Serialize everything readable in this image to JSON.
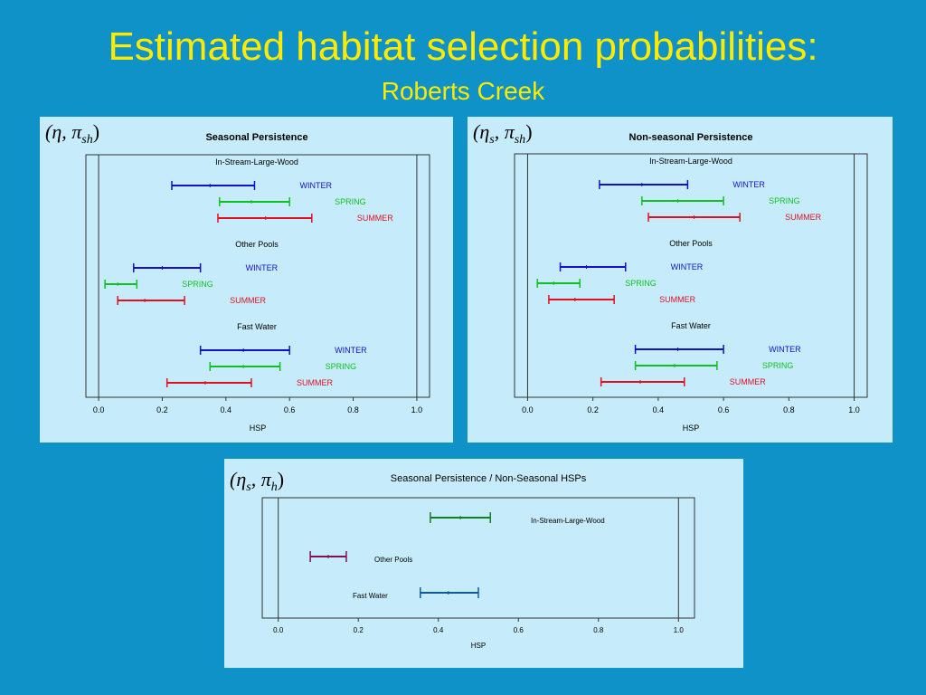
{
  "title": "Estimated habitat selection probabilities:",
  "subtitle": "Roberts Creek",
  "colors": {
    "background": "#0e92c8",
    "title": "#ffea00",
    "panel": "#c6ecfb",
    "winter": "#1010d0",
    "spring": "#10c020",
    "summer": "#e01020",
    "large_wood": "#108020",
    "other_pools": "#801050",
    "fast_water": "#105a98"
  },
  "chart_data": [
    {
      "type": "interval",
      "panel_label": "(η, π",
      "panel_label_sub": "sh",
      "title": "Seasonal Persistence",
      "xlabel": "HSP",
      "xlim": [
        -0.04,
        1.04
      ],
      "xticks": [
        "0.0",
        "0.2",
        "0.4",
        "0.6",
        "0.8",
        "1.0"
      ],
      "reference_lines": [
        0,
        1
      ],
      "groups": [
        {
          "name": "In-Stream-Large-Wood",
          "series": [
            {
              "name": "WINTER",
              "color": "#1010d0",
              "low": 0.23,
              "est": 0.35,
              "high": 0.49
            },
            {
              "name": "SPRING",
              "color": "#10c020",
              "low": 0.38,
              "est": 0.48,
              "high": 0.6
            },
            {
              "name": "SUMMER",
              "color": "#e01020",
              "low": 0.375,
              "est": 0.525,
              "high": 0.67
            }
          ]
        },
        {
          "name": "Other Pools",
          "series": [
            {
              "name": "WINTER",
              "color": "#1010d0",
              "low": 0.11,
              "est": 0.2,
              "high": 0.32
            },
            {
              "name": "SPRING",
              "color": "#10c020",
              "low": 0.02,
              "est": 0.06,
              "high": 0.12
            },
            {
              "name": "SUMMER",
              "color": "#e01020",
              "low": 0.06,
              "est": 0.145,
              "high": 0.27
            }
          ]
        },
        {
          "name": "Fast Water",
          "series": [
            {
              "name": "WINTER",
              "color": "#1010d0",
              "low": 0.32,
              "est": 0.455,
              "high": 0.6
            },
            {
              "name": "SPRING",
              "color": "#10c020",
              "low": 0.35,
              "est": 0.455,
              "high": 0.57
            },
            {
              "name": "SUMMER",
              "color": "#e01020",
              "low": 0.215,
              "est": 0.335,
              "high": 0.48
            }
          ]
        }
      ]
    },
    {
      "type": "interval",
      "panel_label": "(η",
      "panel_label_sub1": "s",
      "panel_label_mid": ", π",
      "panel_label_sub": "sh",
      "title": "Non-seasonal Persistence",
      "xlabel": "HSP",
      "xlim": [
        -0.04,
        1.04
      ],
      "xticks": [
        "0.0",
        "0.2",
        "0.4",
        "0.6",
        "0.8",
        "1.0"
      ],
      "reference_lines": [
        0,
        1
      ],
      "groups": [
        {
          "name": "In-Stream-Large-Wood",
          "series": [
            {
              "name": "WINTER",
              "color": "#1010d0",
              "low": 0.22,
              "est": 0.35,
              "high": 0.49
            },
            {
              "name": "SPRING",
              "color": "#10c020",
              "low": 0.35,
              "est": 0.46,
              "high": 0.6
            },
            {
              "name": "SUMMER",
              "color": "#e01020",
              "low": 0.37,
              "est": 0.51,
              "high": 0.65
            }
          ]
        },
        {
          "name": "Other Pools",
          "series": [
            {
              "name": "WINTER",
              "color": "#1010d0",
              "low": 0.1,
              "est": 0.18,
              "high": 0.3
            },
            {
              "name": "SPRING",
              "color": "#10c020",
              "low": 0.03,
              "est": 0.08,
              "high": 0.16
            },
            {
              "name": "SUMMER",
              "color": "#e01020",
              "low": 0.065,
              "est": 0.145,
              "high": 0.265
            }
          ]
        },
        {
          "name": "Fast Water",
          "series": [
            {
              "name": "WINTER",
              "color": "#1010d0",
              "low": 0.33,
              "est": 0.46,
              "high": 0.6
            },
            {
              "name": "SPRING",
              "color": "#10c020",
              "low": 0.33,
              "est": 0.45,
              "high": 0.58
            },
            {
              "name": "SUMMER",
              "color": "#e01020",
              "low": 0.225,
              "est": 0.345,
              "high": 0.48
            }
          ]
        }
      ]
    },
    {
      "type": "interval",
      "panel_label": "(η",
      "panel_label_sub1": "s",
      "panel_label_mid": ", π",
      "panel_label_sub": "h",
      "title": "Seasonal Persistence / Non-Seasonal HSPs",
      "xlabel": "HSP",
      "xlim": [
        -0.04,
        1.04
      ],
      "xticks": [
        "0.0",
        "0.2",
        "0.4",
        "0.6",
        "0.8",
        "1.0"
      ],
      "reference_lines": [
        0,
        1
      ],
      "series": [
        {
          "name": "In-Stream-Large-Wood",
          "color": "#108020",
          "low": 0.38,
          "est": 0.455,
          "high": 0.53
        },
        {
          "name": "Other Pools",
          "color": "#801050",
          "low": 0.08,
          "est": 0.125,
          "high": 0.17
        },
        {
          "name": "Fast Water",
          "color": "#105a98",
          "low": 0.355,
          "est": 0.425,
          "high": 0.5
        }
      ]
    }
  ]
}
